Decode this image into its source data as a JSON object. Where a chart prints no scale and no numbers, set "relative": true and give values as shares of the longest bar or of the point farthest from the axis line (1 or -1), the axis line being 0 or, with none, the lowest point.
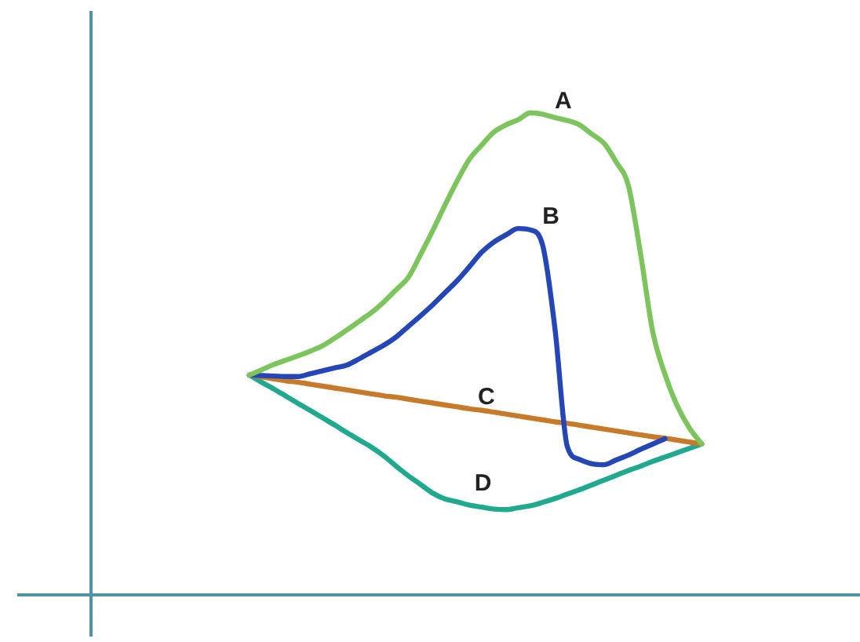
{
  "chart_data": {
    "type": "line",
    "relative": true,
    "legend": false,
    "grid": false,
    "marker": "none",
    "line_style": "solid",
    "categories": [
      null,
      null,
      null,
      null,
      null,
      null,
      null,
      null,
      null,
      null,
      null,
      null,
      null,
      null,
      null,
      null,
      null,
      null,
      null,
      null,
      null,
      null,
      null,
      null,
      null,
      null,
      null,
      null,
      null,
      null,
      null,
      null,
      null,
      null,
      null,
      null,
      null,
      null
    ],
    "series": [
      {
        "name": "A",
        "color": "#7cc45c",
        "values": [
          0.456,
          0.467,
          0.478,
          0.487,
          0.496,
          0.506,
          0.517,
          0.533,
          0.55,
          0.568,
          0.586,
          0.608,
          0.633,
          0.659,
          0.706,
          0.756,
          0.809,
          0.859,
          0.904,
          0.933,
          0.96,
          0.975,
          0.986,
          1.0,
          0.997,
          0.99,
          0.984,
          0.975,
          0.956,
          0.937,
          0.898,
          0.849,
          0.707,
          0.545,
          0.457,
          0.392,
          0.346,
          0.313
        ]
      },
      {
        "name": "B",
        "color": "#2446b6",
        "values": [
          0.456,
          0.455,
          0.454,
          0.453,
          0.453,
          0.459,
          0.465,
          0.471,
          0.477,
          0.49,
          0.504,
          0.518,
          0.535,
          0.557,
          0.579,
          0.602,
          0.627,
          0.652,
          0.681,
          0.711,
          0.732,
          0.747,
          0.76,
          0.757,
          0.724,
          0.551,
          0.308,
          0.281,
          0.272,
          0.27,
          0.28,
          0.29,
          0.302,
          0.313,
          0.324,
          null,
          null,
          null
        ]
      },
      {
        "name": "C",
        "color": "#c77a2a",
        "values": [
          0.456,
          0.452,
          0.448,
          0.444,
          0.441,
          0.437,
          0.433,
          0.429,
          0.425,
          0.421,
          0.417,
          0.413,
          0.41,
          0.406,
          0.402,
          0.398,
          0.394,
          0.39,
          0.386,
          0.383,
          0.379,
          0.375,
          0.371,
          0.367,
          0.363,
          0.359,
          0.356,
          0.352,
          0.348,
          0.344,
          0.34,
          0.336,
          0.332,
          0.328,
          0.325,
          0.321,
          0.317,
          0.313
        ]
      },
      {
        "name": "D",
        "color": "#21a98f",
        "values": [
          0.456,
          0.441,
          0.427,
          0.412,
          0.397,
          0.382,
          0.367,
          0.352,
          0.336,
          0.321,
          0.306,
          0.288,
          0.267,
          0.247,
          0.229,
          0.211,
          0.199,
          0.193,
          0.186,
          0.182,
          0.178,
          0.177,
          0.181,
          0.185,
          0.192,
          0.2,
          0.209,
          0.218,
          0.228,
          0.238,
          0.248,
          0.258,
          0.267,
          0.277,
          0.286,
          0.295,
          0.304,
          0.313
        ]
      }
    ]
  }
}
